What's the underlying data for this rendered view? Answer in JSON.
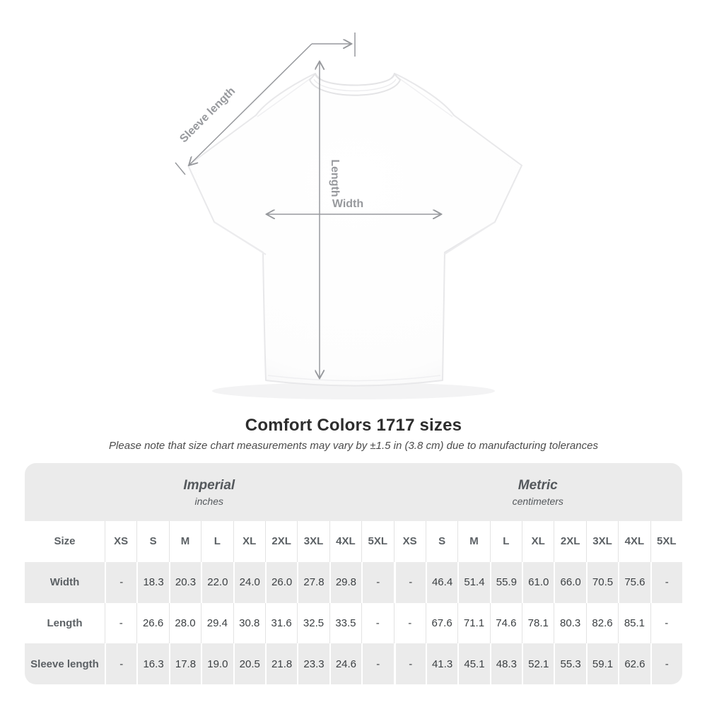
{
  "title": "Comfort Colors 1717 sizes",
  "subtitle": "Please note that size chart measurements may vary by ±1.5 in (3.8 cm) due to manufacturing tolerances",
  "diagram": {
    "labels": {
      "sleeve_length": "Sleeve length",
      "length": "Length",
      "width": "Width"
    }
  },
  "table": {
    "size_col_header": "Size",
    "unit_groups": [
      {
        "label": "Imperial",
        "sublabel": "inches"
      },
      {
        "label": "Metric",
        "sublabel": "centimeters"
      }
    ],
    "sizes": [
      "XS",
      "S",
      "M",
      "L",
      "XL",
      "2XL",
      "3XL",
      "4XL",
      "5XL"
    ],
    "rows": [
      {
        "label": "Width",
        "imperial": [
          "-",
          "18.3",
          "20.3",
          "22.0",
          "24.0",
          "26.0",
          "27.8",
          "29.8",
          "-"
        ],
        "metric": [
          "-",
          "46.4",
          "51.4",
          "55.9",
          "61.0",
          "66.0",
          "70.5",
          "75.6",
          "-"
        ]
      },
      {
        "label": "Length",
        "imperial": [
          "-",
          "26.6",
          "28.0",
          "29.4",
          "30.8",
          "31.6",
          "32.5",
          "33.5",
          "-"
        ],
        "metric": [
          "-",
          "67.6",
          "71.1",
          "74.6",
          "78.1",
          "80.3",
          "82.6",
          "85.1",
          "-"
        ]
      },
      {
        "label": "Sleeve length",
        "imperial": [
          "-",
          "16.3",
          "17.8",
          "19.0",
          "20.5",
          "21.8",
          "23.3",
          "24.6",
          "-"
        ],
        "metric": [
          "-",
          "41.3",
          "45.1",
          "48.3",
          "52.1",
          "55.3",
          "59.1",
          "62.6",
          "-"
        ]
      }
    ]
  },
  "colors": {
    "annotation_grey": "#97999d",
    "table_stripe": "#ebebeb",
    "value_text": "#3c4043",
    "label_text": "#5c6165",
    "title_text": "#2d2d2d"
  }
}
